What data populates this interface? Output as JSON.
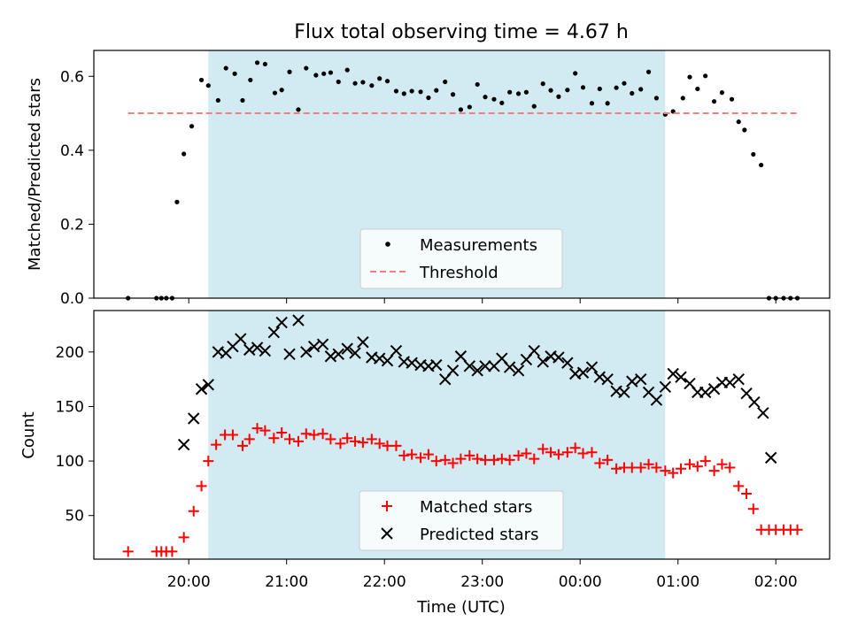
{
  "chart_data": {
    "title": "Flux total observing time = 4.67 h",
    "xlabel": "Time (UTC)",
    "x_ticks": [
      "20:00",
      "21:00",
      "22:00",
      "23:00",
      "00:00",
      "01:00",
      "02:00"
    ],
    "x_unit": "hours since 20:00 UTC",
    "x_range": [
      -0.97,
      6.55
    ],
    "shaded_span": [
      0.2,
      4.87
    ],
    "shaded_color": "#add8e6",
    "panels": [
      {
        "type": "scatter",
        "ylabel": "Matched/Predicted stars",
        "ylim": [
          0,
          0.67
        ],
        "y_ticks": [
          0.0,
          0.2,
          0.4,
          0.6
        ],
        "legend": "bottom-center",
        "threshold": {
          "name": "Threshold",
          "value": 0.5,
          "x": [
            -0.62,
            6.22
          ],
          "color": "#f08080",
          "style": "dashed"
        },
        "series": [
          {
            "name": "Measurements",
            "marker": "dot",
            "color": "#000000",
            "x": [
              -0.62,
              -0.33,
              -0.28,
              -0.23,
              -0.17,
              -0.12,
              -0.05,
              0.03,
              0.13,
              0.2,
              0.3,
              0.38,
              0.47,
              0.55,
              0.63,
              0.7,
              0.78,
              0.88,
              0.95,
              1.03,
              1.12,
              1.2,
              1.3,
              1.38,
              1.45,
              1.53,
              1.62,
              1.7,
              1.78,
              1.87,
              1.95,
              2.03,
              2.12,
              2.2,
              2.28,
              2.37,
              2.45,
              2.53,
              2.62,
              2.7,
              2.78,
              2.87,
              2.95,
              3.03,
              3.12,
              3.2,
              3.28,
              3.37,
              3.45,
              3.53,
              3.62,
              3.7,
              3.78,
              3.87,
              3.95,
              4.03,
              4.12,
              4.2,
              4.28,
              4.37,
              4.45,
              4.53,
              4.62,
              4.7,
              4.78,
              4.87,
              4.95,
              5.05,
              5.12,
              5.2,
              5.28,
              5.37,
              5.45,
              5.55,
              5.62,
              5.68,
              5.77,
              5.85,
              5.93,
              6.0,
              6.08,
              6.15,
              6.22
            ],
            "y": [
              0.0,
              0.0,
              0.0,
              0.0,
              0.0,
              0.26,
              0.39,
              0.465,
              0.59,
              0.575,
              0.535,
              0.622,
              0.607,
              0.535,
              0.59,
              0.637,
              0.633,
              0.555,
              0.563,
              0.612,
              0.51,
              0.622,
              0.603,
              0.607,
              0.61,
              0.585,
              0.617,
              0.581,
              0.584,
              0.575,
              0.594,
              0.587,
              0.56,
              0.553,
              0.56,
              0.558,
              0.542,
              0.562,
              0.585,
              0.551,
              0.51,
              0.517,
              0.578,
              0.544,
              0.538,
              0.528,
              0.557,
              0.553,
              0.557,
              0.519,
              0.58,
              0.562,
              0.545,
              0.563,
              0.608,
              0.57,
              0.527,
              0.566,
              0.527,
              0.569,
              0.581,
              0.554,
              0.565,
              0.612,
              0.541,
              0.497,
              0.505,
              0.541,
              0.598,
              0.566,
              0.601,
              0.532,
              0.556,
              0.538,
              0.477,
              0.455,
              0.389,
              0.36,
              0.0,
              0.0,
              0.0,
              0.0,
              0.0
            ]
          }
        ]
      },
      {
        "type": "scatter",
        "ylabel": "Count",
        "ylim": [
          10,
          238
        ],
        "y_ticks": [
          50,
          100,
          150,
          200
        ],
        "legend": "bottom-center",
        "series": [
          {
            "name": "Matched stars",
            "marker": "plus",
            "color": "#ff0000",
            "x": [
              -0.62,
              -0.33,
              -0.28,
              -0.23,
              -0.17,
              -0.05,
              0.05,
              0.13,
              0.2,
              0.28,
              0.37,
              0.45,
              0.55,
              0.62,
              0.7,
              0.78,
              0.87,
              0.95,
              1.03,
              1.12,
              1.2,
              1.28,
              1.37,
              1.45,
              1.55,
              1.62,
              1.7,
              1.78,
              1.87,
              1.95,
              2.03,
              2.12,
              2.2,
              2.28,
              2.37,
              2.45,
              2.53,
              2.62,
              2.7,
              2.78,
              2.87,
              2.95,
              3.03,
              3.12,
              3.2,
              3.28,
              3.37,
              3.45,
              3.53,
              3.62,
              3.7,
              3.78,
              3.87,
              3.95,
              4.03,
              4.12,
              4.2,
              4.28,
              4.37,
              4.45,
              4.53,
              4.62,
              4.7,
              4.78,
              4.87,
              4.95,
              5.03,
              5.12,
              5.2,
              5.28,
              5.37,
              5.45,
              5.53,
              5.62,
              5.7,
              5.77,
              5.85,
              5.93,
              6.0,
              6.08,
              6.15,
              6.22
            ],
            "y": [
              17,
              17,
              17,
              17,
              17,
              30,
              54,
              77,
              100,
              115,
              124,
              124,
              114,
              120,
              130,
              128,
              121,
              126,
              120,
              118,
              125,
              124,
              125,
              120,
              116,
              121,
              118,
              117,
              120,
              116,
              114,
              114,
              105,
              106,
              103,
              106,
              100,
              101,
              98,
              102,
              105,
              102,
              101,
              101,
              102,
              101,
              105,
              107,
              102,
              111,
              108,
              106,
              108,
              112,
              107,
              108,
              98,
              101,
              93,
              94,
              94,
              94,
              97,
              94,
              91,
              89,
              93,
              97,
              95,
              100,
              91,
              97,
              94,
              77,
              70,
              56,
              37,
              37,
              37,
              37,
              37,
              37
            ]
          },
          {
            "name": "Predicted stars",
            "marker": "x",
            "color": "#000000",
            "x": [
              -0.05,
              0.05,
              0.13,
              0.2,
              0.3,
              0.38,
              0.45,
              0.53,
              0.62,
              0.7,
              0.78,
              0.87,
              0.95,
              1.03,
              1.12,
              1.2,
              1.28,
              1.37,
              1.45,
              1.53,
              1.62,
              1.7,
              1.78,
              1.87,
              1.95,
              2.03,
              2.12,
              2.2,
              2.28,
              2.37,
              2.45,
              2.53,
              2.62,
              2.7,
              2.78,
              2.87,
              2.95,
              3.03,
              3.12,
              3.2,
              3.28,
              3.37,
              3.45,
              3.53,
              3.62,
              3.7,
              3.78,
              3.87,
              3.95,
              4.03,
              4.12,
              4.2,
              4.28,
              4.37,
              4.45,
              4.53,
              4.62,
              4.7,
              4.78,
              4.87,
              4.95,
              5.03,
              5.12,
              5.2,
              5.28,
              5.37,
              5.45,
              5.53,
              5.62,
              5.7,
              5.78,
              5.87,
              5.95
            ],
            "y": [
              115,
              139,
              166,
              170,
              200,
              199,
              205,
              212,
              202,
              204,
              201,
              218,
              227,
              198,
              229,
              200,
              205,
              207,
              196,
              198,
              203,
              199,
              209,
              195,
              194,
              192,
              201,
              191,
              190,
              188,
              187,
              188,
              175,
              183,
              196,
              187,
              183,
              187,
              187,
              194,
              186,
              183,
              193,
              201,
              191,
              196,
              195,
              190,
              180,
              181,
              186,
              177,
              175,
              164,
              163,
              173,
              175,
              163,
              156,
              168,
              180,
              177,
              171,
              163,
              163,
              166,
              172,
              172,
              175,
              162,
              154,
              144,
              103
            ]
          }
        ]
      }
    ]
  }
}
